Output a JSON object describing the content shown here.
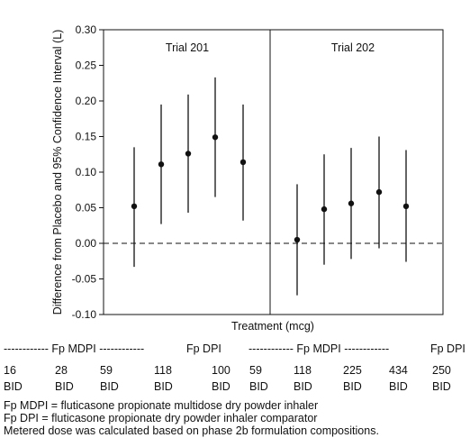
{
  "chart_data": {
    "type": "scatter",
    "ylabel": "Difference from Placebo and 95% Confidence Interval (L)",
    "xlabel": "Treatment (mcg)",
    "ylim": [
      -0.1,
      0.3
    ],
    "yticks": [
      "0.30",
      "0.25",
      "0.20",
      "0.15",
      "0.10",
      "0.05",
      "0.00",
      "-0.05",
      "-0.10"
    ],
    "reference_line": 0.0,
    "panels": [
      {
        "title": "Trial 201",
        "points": [
          {
            "dose": "16",
            "freq": "BID",
            "estimate": 0.052,
            "lower": -0.033,
            "upper": 0.135
          },
          {
            "dose": "28",
            "freq": "BID",
            "estimate": 0.111,
            "lower": 0.027,
            "upper": 0.195
          },
          {
            "dose": "59",
            "freq": "BID",
            "estimate": 0.126,
            "lower": 0.043,
            "upper": 0.209
          },
          {
            "dose": "118",
            "freq": "BID",
            "estimate": 0.149,
            "lower": 0.065,
            "upper": 0.233
          },
          {
            "dose": "100",
            "freq": "BID",
            "estimate": 0.114,
            "lower": 0.032,
            "upper": 0.195
          }
        ]
      },
      {
        "title": "Trial 202",
        "points": [
          {
            "dose": "59",
            "freq": "BID",
            "estimate": 0.005,
            "lower": -0.073,
            "upper": 0.083
          },
          {
            "dose": "118",
            "freq": "BID",
            "estimate": 0.048,
            "lower": -0.03,
            "upper": 0.125
          },
          {
            "dose": "225",
            "freq": "BID",
            "estimate": 0.056,
            "lower": -0.022,
            "upper": 0.134
          },
          {
            "dose": "434",
            "freq": "BID",
            "estimate": 0.072,
            "lower": -0.007,
            "upper": 0.15
          },
          {
            "dose": "250",
            "freq": "BID",
            "estimate": 0.052,
            "lower": -0.026,
            "upper": 0.131
          }
        ]
      }
    ]
  },
  "group_headers": [
    "------------ Fp MDPI ------------",
    "Fp DPI",
    "------------ Fp MDPI ------------",
    "Fp DPI"
  ],
  "footnotes": [
    "Fp MDPI = fluticasone propionate multidose dry powder inhaler",
    "Fp DPI = fluticasone propionate dry powder inhaler comparator",
    "Metered dose was calculated based on phase 2b formulation compositions."
  ]
}
